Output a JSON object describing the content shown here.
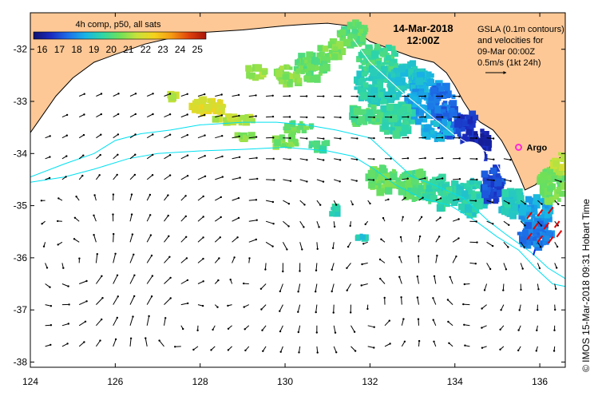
{
  "chart_data": {
    "type": "map",
    "title": "4h comp, p50, all sats",
    "date": "14-Mar-2018",
    "time": "12:00Z",
    "colorbar": {
      "ticks": [
        "16",
        "17",
        "18",
        "19",
        "20",
        "21",
        "22",
        "23",
        "24",
        "25"
      ],
      "min": 15.5,
      "max": 25.5,
      "colors": [
        "#10126e",
        "#1a2ac0",
        "#1d6fe8",
        "#18b4e6",
        "#2fd6a6",
        "#6ee05a",
        "#c8e23a",
        "#f5d21c",
        "#f59a12",
        "#e0420c",
        "#a8140a"
      ]
    },
    "xaxis": {
      "min": 124,
      "max": 136.6,
      "ticks": [
        124,
        126,
        128,
        130,
        132,
        134,
        136
      ],
      "labels": [
        "124",
        "126",
        "128",
        "130",
        "132",
        "134",
        "136"
      ]
    },
    "yaxis": {
      "min": -38.1,
      "max": -31.3,
      "ticks": [
        -32,
        -33,
        -34,
        -35,
        -36,
        -37,
        -38
      ],
      "labels": [
        "-32",
        "-33",
        "-34",
        "-35",
        "-36",
        "-37",
        "-38"
      ]
    },
    "gsla_info": [
      "GSLA (0.1m contours)",
      "and velocities for",
      "09-Mar 00:00Z",
      "0.5m/s (1kt 24h)"
    ],
    "argo": {
      "label": "Argo",
      "lon": 135.5,
      "lat": -33.88,
      "color": "#ff2ad4"
    },
    "credit": "© IMOS 15-Mar-2018 09:31 Hobart Time",
    "land_color": "#fdc896",
    "contour_color": "#00e0f0",
    "coastline": [
      [
        124,
        -33.6
      ],
      [
        124.3,
        -33.25
      ],
      [
        124.6,
        -32.9
      ],
      [
        125.0,
        -32.55
      ],
      [
        125.5,
        -32.25
      ],
      [
        126.0,
        -32.1
      ],
      [
        126.7,
        -31.9
      ],
      [
        127.5,
        -31.75
      ],
      [
        128.0,
        -31.68
      ],
      [
        129.0,
        -31.63
      ],
      [
        130.0,
        -31.55
      ],
      [
        130.5,
        -31.52
      ],
      [
        131.0,
        -31.5
      ],
      [
        131.5,
        -31.55
      ],
      [
        132.0,
        -31.85
      ],
      [
        132.5,
        -32.0
      ],
      [
        133.0,
        -32.15
      ],
      [
        133.5,
        -32.25
      ],
      [
        133.8,
        -32.45
      ],
      [
        134.0,
        -32.7
      ],
      [
        134.2,
        -33.0
      ],
      [
        134.4,
        -33.25
      ],
      [
        134.6,
        -33.4
      ],
      [
        134.9,
        -33.55
      ],
      [
        135.1,
        -33.75
      ],
      [
        135.3,
        -34.05
      ],
      [
        135.5,
        -34.4
      ],
      [
        135.65,
        -34.7
      ],
      [
        135.9,
        -34.6
      ],
      [
        136.1,
        -34.4
      ],
      [
        136.3,
        -34.2
      ],
      [
        136.6,
        -34.0
      ]
    ],
    "contours": [
      [
        [
          124,
          -34.45
        ],
        [
          124.8,
          -34.2
        ],
        [
          125.5,
          -34.0
        ],
        [
          126.0,
          -33.75
        ],
        [
          126.6,
          -33.62
        ],
        [
          127.3,
          -33.55
        ],
        [
          128.0,
          -33.45
        ],
        [
          129.0,
          -33.4
        ],
        [
          129.8,
          -33.4
        ],
        [
          130.5,
          -33.45
        ],
        [
          131.2,
          -33.55
        ],
        [
          132.0,
          -33.7
        ],
        [
          132.6,
          -34.15
        ],
        [
          133.0,
          -34.45
        ],
        [
          133.5,
          -34.6
        ],
        [
          134.2,
          -34.85
        ],
        [
          134.8,
          -35.3
        ],
        [
          135.2,
          -35.55
        ],
        [
          135.8,
          -35.9
        ],
        [
          136.2,
          -36.2
        ],
        [
          136.6,
          -36.4
        ]
      ],
      [
        [
          124,
          -34.55
        ],
        [
          124.8,
          -34.45
        ],
        [
          125.5,
          -34.3
        ],
        [
          126.3,
          -34.1
        ],
        [
          127.0,
          -34.0
        ],
        [
          128.0,
          -33.95
        ],
        [
          129.0,
          -33.92
        ],
        [
          130.0,
          -33.88
        ],
        [
          131.0,
          -33.95
        ],
        [
          131.6,
          -34.05
        ],
        [
          132.1,
          -34.3
        ],
        [
          132.6,
          -34.6
        ],
        [
          133.2,
          -34.85
        ],
        [
          133.9,
          -35.0
        ],
        [
          134.5,
          -35.3
        ],
        [
          135.0,
          -35.6
        ],
        [
          135.5,
          -35.85
        ],
        [
          135.9,
          -36.2
        ],
        [
          136.3,
          -36.5
        ],
        [
          136.6,
          -36.55
        ]
      ]
    ],
    "shelf_contour": [
      [
        131.6,
        -31.8
      ],
      [
        132.0,
        -32.25
      ],
      [
        132.4,
        -32.55
      ],
      [
        132.8,
        -32.85
      ],
      [
        133.1,
        -33.05
      ],
      [
        133.4,
        -33.25
      ],
      [
        133.7,
        -33.45
      ],
      [
        134.0,
        -33.65
      ],
      [
        134.3,
        -33.8
      ],
      [
        134.6,
        -33.9
      ],
      [
        134.9,
        -34.05
      ],
      [
        135.05,
        -34.3
      ],
      [
        135.15,
        -34.45
      ]
    ],
    "sst_patches": [
      {
        "lon": 131.6,
        "lat": -31.7,
        "rx": 0.35,
        "ry": 0.22,
        "t": 20.2
      },
      {
        "lon": 131.1,
        "lat": -32.05,
        "rx": 0.3,
        "ry": 0.2,
        "t": 20.6
      },
      {
        "lon": 130.6,
        "lat": -32.35,
        "rx": 0.4,
        "ry": 0.25,
        "t": 20.3
      },
      {
        "lon": 130.1,
        "lat": -32.5,
        "rx": 0.3,
        "ry": 0.2,
        "t": 20.8
      },
      {
        "lon": 129.3,
        "lat": -32.45,
        "rx": 0.25,
        "ry": 0.12,
        "t": 21.0
      },
      {
        "lon": 132.2,
        "lat": -32.2,
        "rx": 0.5,
        "ry": 0.3,
        "t": 19.8
      },
      {
        "lon": 132.2,
        "lat": -32.7,
        "rx": 0.6,
        "ry": 0.35,
        "t": 19.3
      },
      {
        "lon": 132.9,
        "lat": -32.5,
        "rx": 0.4,
        "ry": 0.25,
        "t": 19.0
      },
      {
        "lon": 133.3,
        "lat": -32.7,
        "rx": 0.35,
        "ry": 0.25,
        "t": 18.6
      },
      {
        "lon": 133.2,
        "lat": -33.1,
        "rx": 0.4,
        "ry": 0.3,
        "t": 18.2
      },
      {
        "lon": 133.7,
        "lat": -33.0,
        "rx": 0.3,
        "ry": 0.35,
        "t": 17.6
      },
      {
        "lon": 133.9,
        "lat": -33.4,
        "rx": 0.3,
        "ry": 0.3,
        "t": 17.2
      },
      {
        "lon": 134.3,
        "lat": -33.5,
        "rx": 0.25,
        "ry": 0.3,
        "t": 16.6
      },
      {
        "lon": 134.6,
        "lat": -33.85,
        "rx": 0.22,
        "ry": 0.3,
        "t": 16.3
      },
      {
        "lon": 132.6,
        "lat": -33.35,
        "rx": 0.45,
        "ry": 0.3,
        "t": 19.6
      },
      {
        "lon": 133.6,
        "lat": -33.55,
        "rx": 0.35,
        "ry": 0.2,
        "t": 18.5
      },
      {
        "lon": 131.9,
        "lat": -33.25,
        "rx": 0.4,
        "ry": 0.2,
        "t": 20.0
      },
      {
        "lon": 132.3,
        "lat": -34.5,
        "rx": 0.35,
        "ry": 0.25,
        "t": 20.4
      },
      {
        "lon": 133.0,
        "lat": -34.6,
        "rx": 0.35,
        "ry": 0.3,
        "t": 20.1
      },
      {
        "lon": 133.7,
        "lat": -34.75,
        "rx": 0.4,
        "ry": 0.3,
        "t": 19.6
      },
      {
        "lon": 134.4,
        "lat": -34.85,
        "rx": 0.35,
        "ry": 0.35,
        "t": 19.3
      },
      {
        "lon": 134.9,
        "lat": -34.6,
        "rx": 0.25,
        "ry": 0.35,
        "t": 17.0
      },
      {
        "lon": 135.35,
        "lat": -34.95,
        "rx": 0.3,
        "ry": 0.25,
        "t": 19.2
      },
      {
        "lon": 135.9,
        "lat": -35.15,
        "rx": 0.4,
        "ry": 0.3,
        "t": 18.3
      },
      {
        "lon": 135.9,
        "lat": -35.55,
        "rx": 0.4,
        "ry": 0.25,
        "t": 17.7
      },
      {
        "lon": 136.3,
        "lat": -34.6,
        "rx": 0.3,
        "ry": 0.35,
        "t": 20.5
      },
      {
        "lon": 136.5,
        "lat": -34.2,
        "rx": 0.2,
        "ry": 0.2,
        "t": 21.4
      },
      {
        "lon": 128.2,
        "lat": -33.1,
        "rx": 0.4,
        "ry": 0.16,
        "t": 22.0
      },
      {
        "lon": 127.4,
        "lat": -32.9,
        "rx": 0.18,
        "ry": 0.08,
        "t": 21.5
      },
      {
        "lon": 128.9,
        "lat": -33.35,
        "rx": 0.55,
        "ry": 0.08,
        "t": 21.4
      },
      {
        "lon": 130.3,
        "lat": -33.5,
        "rx": 0.35,
        "ry": 0.1,
        "t": 20.3
      },
      {
        "lon": 130.0,
        "lat": -33.8,
        "rx": 0.3,
        "ry": 0.12,
        "t": 20.6
      },
      {
        "lon": 130.8,
        "lat": -33.85,
        "rx": 0.22,
        "ry": 0.1,
        "t": 19.9
      },
      {
        "lon": 129.0,
        "lat": -33.65,
        "rx": 0.25,
        "ry": 0.08,
        "t": 20.8
      },
      {
        "lon": 131.2,
        "lat": -35.1,
        "rx": 0.15,
        "ry": 0.08,
        "t": 19.3
      },
      {
        "lon": 131.8,
        "lat": -35.6,
        "rx": 0.1,
        "ry": 0.06,
        "t": 19.0
      }
    ],
    "cloud_gaps": [
      {
        "lon": 134.35,
        "lat": -34.05,
        "rx": 0.35,
        "ry": 0.28
      },
      {
        "lon": 132.85,
        "lat": -34.05,
        "rx": 0.6,
        "ry": 0.28
      },
      {
        "lon": 131.1,
        "lat": -34.25,
        "rx": 0.35,
        "ry": 0.2
      }
    ],
    "velocities": {
      "lon_start": 124.35,
      "lon_step": 0.4,
      "lon_count": 31,
      "lat_start": -32.9,
      "lat_step": -0.4,
      "lat_count": 13
    },
    "red_arrows": [
      {
        "lon": 135.7,
        "lat": -35.25
      },
      {
        "lon": 135.95,
        "lat": -35.2
      },
      {
        "lon": 136.2,
        "lat": -35.15
      },
      {
        "lon": 135.85,
        "lat": -35.45
      },
      {
        "lon": 136.1,
        "lat": -35.45
      },
      {
        "lon": 136.35,
        "lat": -35.42
      },
      {
        "lon": 135.7,
        "lat": -35.65
      },
      {
        "lon": 135.95,
        "lat": -35.7
      },
      {
        "lon": 136.2,
        "lat": -35.72
      },
      {
        "lon": 136.4,
        "lat": -35.6
      }
    ],
    "blue_arrows": [
      {
        "lon": 135.85,
        "lat": -35.95
      }
    ]
  }
}
